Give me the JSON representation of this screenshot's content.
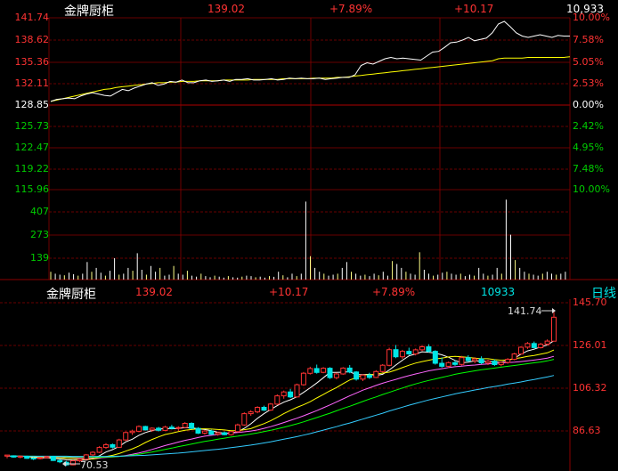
{
  "colors": {
    "up": "#ff3333",
    "down": "#00e5e5",
    "gain": "#00cc00",
    "white": "#ffffff",
    "yellow": "#ffff00",
    "grid": "#8b0000",
    "ma5": "#ffffff",
    "ma10": "#ffff00",
    "ma20": "#ff66ff",
    "ma30": "#00ff00",
    "ma60": "#33ccff"
  },
  "intraday": {
    "name": "金牌厨柜",
    "price": "139.02",
    "change_pct": "+7.89%",
    "change": "+10.17",
    "volume": "10,933",
    "price_axis_left": [
      "141.74",
      "138.62",
      "135.36",
      "132.11",
      "128.85",
      "125.73",
      "122.47",
      "119.22",
      "115.96"
    ],
    "pct_axis_right": [
      "10.00%",
      "7.58%",
      "5.05%",
      "2.53%",
      "0.00%",
      "2.42%",
      "4.95%",
      "7.48%",
      "10.00%"
    ],
    "volume_axis": [
      "407",
      "273",
      "139"
    ],
    "price_series": [
      129.2,
      129.5,
      129.6,
      129.7,
      129.6,
      130.0,
      130.3,
      130.5,
      130.3,
      130.1,
      130.0,
      130.5,
      131.0,
      130.8,
      131.2,
      131.5,
      131.8,
      132.0,
      131.6,
      131.8,
      132.2,
      132.1,
      132.4,
      132.0,
      132.0,
      132.3,
      132.4,
      132.2,
      132.3,
      132.4,
      132.2,
      132.5,
      132.5,
      132.6,
      132.4,
      132.4,
      132.5,
      132.6,
      132.4,
      132.5,
      132.7,
      132.6,
      132.7,
      132.6,
      132.6,
      132.7,
      132.5,
      132.6,
      132.7,
      132.8,
      132.8,
      133.2,
      134.6,
      135.0,
      134.8,
      135.2,
      135.6,
      135.8,
      135.6,
      135.7,
      135.6,
      135.5,
      135.4,
      136.0,
      136.6,
      136.7,
      137.3,
      138.0,
      138.1,
      138.4,
      138.8,
      138.3,
      138.5,
      138.7,
      139.5,
      140.8,
      141.2,
      140.4,
      139.5,
      139.0,
      138.8,
      139.0,
      139.2,
      139.0,
      138.8,
      139.1,
      139.0,
      139.0
    ],
    "avg_series": [
      129.2,
      129.4,
      129.6,
      129.8,
      130.0,
      130.2,
      130.4,
      130.6,
      130.8,
      131.0,
      131.1,
      131.3,
      131.4,
      131.5,
      131.6,
      131.7,
      131.8,
      131.9,
      132.0,
      132.0,
      132.1,
      132.1,
      132.2,
      132.2,
      132.2,
      132.3,
      132.3,
      132.3,
      132.3,
      132.4,
      132.4,
      132.4,
      132.4,
      132.4,
      132.5,
      132.5,
      132.5,
      132.5,
      132.5,
      132.6,
      132.6,
      132.6,
      132.6,
      132.6,
      132.7,
      132.7,
      132.7,
      132.7,
      132.8,
      132.8,
      132.9,
      133.0,
      133.1,
      133.2,
      133.3,
      133.4,
      133.5,
      133.6,
      133.7,
      133.8,
      133.9,
      134.0,
      134.1,
      134.2,
      134.3,
      134.4,
      134.5,
      134.6,
      134.7,
      134.8,
      134.9,
      135.0,
      135.1,
      135.2,
      135.3,
      135.6,
      135.7,
      135.7,
      135.7,
      135.7,
      135.8,
      135.8,
      135.8,
      135.8,
      135.8,
      135.8,
      135.8,
      135.9
    ],
    "volume_series": [
      40,
      30,
      25,
      22,
      35,
      28,
      20,
      30,
      90,
      40,
      60,
      35,
      20,
      45,
      110,
      25,
      30,
      60,
      45,
      135,
      50,
      25,
      70,
      40,
      60,
      20,
      25,
      70,
      30,
      25,
      45,
      20,
      15,
      30,
      18,
      12,
      20,
      15,
      10,
      18,
      12,
      10,
      15,
      20,
      18,
      12,
      15,
      10,
      18,
      14,
      40,
      22,
      12,
      30,
      18,
      30,
      400,
      120,
      60,
      40,
      30,
      20,
      25,
      30,
      60,
      90,
      40,
      30,
      20,
      25,
      18,
      30,
      22,
      40,
      20,
      95,
      80,
      60,
      40,
      30,
      25,
      140,
      50,
      30,
      20,
      25,
      35,
      40,
      30,
      25,
      30,
      18,
      25,
      20,
      60,
      30,
      20,
      25,
      60,
      30,
      410,
      230,
      100,
      60,
      40,
      30,
      25,
      20,
      30,
      40,
      30,
      25,
      30,
      40
    ]
  },
  "daily": {
    "name": "金牌厨柜",
    "price": "139.02",
    "change": "+10.17",
    "change_pct": "+7.89%",
    "volume": "10933",
    "period_tab": "日线",
    "price_axis_right": [
      "145.70",
      "126.01",
      "106.32",
      "86.63"
    ],
    "high_marker": "141.74",
    "low_marker": "70.53",
    "chart_data": {
      "type": "candlestick",
      "ylim": [
        70,
        146
      ],
      "candles": [
        [
          75,
          75.5,
          74,
          75.5
        ],
        [
          75.2,
          75.4,
          74.3,
          74.6
        ],
        [
          74.8,
          75.3,
          74.0,
          75.0
        ],
        [
          74.9,
          75.2,
          73.8,
          74.0
        ],
        [
          74.1,
          74.5,
          73.2,
          73.8
        ],
        [
          73.9,
          74.6,
          73.5,
          74.3
        ],
        [
          74.3,
          75.1,
          73.9,
          74.8
        ],
        [
          74.8,
          75.2,
          72.8,
          73.0
        ],
        [
          73.0,
          73.6,
          71.8,
          72.4
        ],
        [
          72.2,
          72.8,
          70.5,
          71.0
        ],
        [
          71.0,
          73.2,
          70.8,
          72.9
        ],
        [
          72.9,
          74.0,
          72.2,
          73.6
        ],
        [
          73.6,
          76.0,
          73.2,
          75.6
        ],
        [
          75.6,
          77.3,
          75.0,
          76.8
        ],
        [
          76.8,
          79.6,
          76.4,
          79.0
        ],
        [
          79.0,
          81.0,
          78.4,
          80.3
        ],
        [
          80.3,
          80.8,
          78.6,
          79.1
        ],
        [
          79.1,
          83.0,
          78.8,
          82.5
        ],
        [
          82.5,
          86.4,
          82.0,
          85.9
        ],
        [
          85.9,
          87.2,
          84.8,
          86.5
        ],
        [
          86.5,
          89.2,
          86.0,
          88.7
        ],
        [
          88.7,
          89.0,
          86.8,
          87.1
        ],
        [
          87.1,
          88.3,
          86.2,
          87.9
        ],
        [
          87.9,
          88.5,
          86.4,
          86.9
        ],
        [
          86.9,
          89.0,
          86.5,
          88.4
        ],
        [
          88.4,
          89.4,
          87.4,
          87.8
        ],
        [
          87.8,
          88.8,
          86.6,
          88.2
        ],
        [
          88.2,
          90.7,
          87.8,
          90.1
        ],
        [
          90.1,
          90.6,
          87.4,
          87.8
        ],
        [
          87.8,
          88.4,
          85.2,
          85.6
        ],
        [
          85.6,
          87.0,
          84.9,
          86.6
        ],
        [
          86.6,
          87.2,
          84.8,
          85.1
        ],
        [
          85.1,
          86.2,
          84.4,
          85.8
        ],
        [
          85.8,
          86.4,
          84.6,
          84.9
        ],
        [
          84.9,
          86.6,
          84.5,
          86.3
        ],
        [
          86.3,
          90.0,
          86.0,
          89.4
        ],
        [
          89.4,
          95.2,
          89.0,
          94.6
        ],
        [
          94.6,
          96.2,
          93.6,
          95.4
        ],
        [
          95.4,
          98.0,
          94.8,
          97.5
        ],
        [
          97.5,
          98.3,
          95.8,
          96.2
        ],
        [
          96.2,
          99.5,
          95.8,
          99.0
        ],
        [
          99.0,
          103.5,
          98.6,
          102.8
        ],
        [
          102.8,
          105.2,
          101.5,
          104.6
        ],
        [
          104.6,
          106.0,
          101.8,
          102.3
        ],
        [
          102.3,
          108.4,
          102.0,
          107.9
        ],
        [
          107.9,
          113.8,
          107.4,
          113.2
        ],
        [
          113.2,
          116.2,
          112.6,
          115.4
        ],
        [
          115.4,
          117.2,
          113.0,
          113.6
        ],
        [
          113.6,
          116.0,
          113.2,
          115.5
        ],
        [
          115.5,
          116.0,
          110.6,
          111.2
        ],
        [
          111.2,
          113.5,
          110.4,
          112.9
        ],
        [
          112.9,
          116.0,
          112.5,
          115.6
        ],
        [
          115.6,
          117.0,
          113.2,
          113.8
        ],
        [
          113.8,
          114.2,
          109.8,
          110.5
        ],
        [
          110.5,
          112.8,
          109.6,
          112.4
        ],
        [
          112.4,
          113.4,
          110.6,
          111.3
        ],
        [
          111.3,
          114.6,
          111.0,
          114.0
        ],
        [
          114.0,
          117.4,
          113.6,
          116.9
        ],
        [
          116.9,
          125.0,
          116.4,
          124.1
        ],
        [
          124.1,
          126.2,
          120.2,
          120.8
        ],
        [
          120.8,
          124.0,
          119.8,
          123.3
        ],
        [
          123.3,
          125.0,
          121.6,
          122.1
        ],
        [
          122.1,
          124.6,
          121.4,
          124.0
        ],
        [
          124.0,
          126.2,
          123.4,
          125.4
        ],
        [
          125.4,
          126.6,
          122.8,
          123.3
        ],
        [
          123.3,
          123.8,
          117.2,
          117.8
        ],
        [
          117.8,
          120.5,
          115.8,
          116.4
        ],
        [
          116.4,
          118.6,
          115.6,
          118.1
        ],
        [
          118.1,
          119.2,
          116.6,
          117.3
        ],
        [
          117.3,
          121.2,
          116.8,
          120.4
        ],
        [
          120.4,
          121.5,
          118.4,
          119.0
        ],
        [
          119.0,
          120.6,
          117.8,
          119.8
        ],
        [
          119.8,
          121.0,
          117.4,
          118.0
        ],
        [
          118.0,
          119.4,
          117.0,
          118.8
        ],
        [
          118.8,
          119.6,
          116.6,
          117.2
        ],
        [
          117.2,
          118.6,
          116.4,
          118.2
        ],
        [
          118.2,
          120.2,
          117.6,
          119.6
        ],
        [
          119.6,
          122.6,
          119.2,
          122.1
        ],
        [
          122.1,
          125.6,
          121.8,
          125.2
        ],
        [
          125.2,
          127.6,
          124.4,
          126.9
        ],
        [
          126.9,
          127.8,
          124.6,
          125.0
        ],
        [
          125.0,
          127.2,
          124.6,
          126.6
        ],
        [
          126.6,
          128.8,
          126.0,
          128.0
        ],
        [
          128.0,
          141.74,
          128.0,
          139.02
        ]
      ],
      "ma_lines": {
        "ma5": [
          75,
          75,
          75,
          74.8,
          74.4,
          74.2,
          74.3,
          74.0,
          73.7,
          73.3,
          73.2,
          73.1,
          73.2,
          73.9,
          75.2,
          76.9,
          78.0,
          79.5,
          81.6,
          82.8,
          84.6,
          85.9,
          86.8,
          87.4,
          87.8,
          87.6,
          87.8,
          88.1,
          88.1,
          87.6,
          87.3,
          86.7,
          86.0,
          85.6,
          85.7,
          86.2,
          87.8,
          89.9,
          92.4,
          94.6,
          96.5,
          98.3,
          99.9,
          101.0,
          102.4,
          104.4,
          106.5,
          108.7,
          111.1,
          113.6,
          113.6,
          113.7,
          113.9,
          112.6,
          112.6,
          112.7,
          112.2,
          112.7,
          114.7,
          117.0,
          119.2,
          121.2,
          122.1,
          123.1,
          122.9,
          122.5,
          121.7,
          120.6,
          119.1,
          118.0,
          118.3,
          118.9,
          118.7,
          118.8,
          118.4,
          118.3,
          119.1,
          120.1,
          122.0,
          123.5,
          124.3,
          125.3,
          126.2,
          128.2
        ],
        "ma10": [
          75,
          75,
          75,
          74.9,
          74.7,
          74.6,
          74.6,
          74.5,
          74.3,
          74.0,
          73.9,
          73.7,
          73.6,
          73.7,
          74.1,
          74.8,
          75.4,
          76.2,
          77.3,
          78.4,
          79.7,
          81.3,
          82.7,
          83.9,
          85.0,
          85.6,
          86.3,
          86.9,
          87.3,
          87.6,
          87.6,
          87.5,
          87.3,
          87.1,
          86.7,
          86.8,
          87.2,
          87.7,
          88.9,
          90.0,
          91.3,
          92.9,
          94.6,
          96.1,
          97.5,
          98.7,
          100.1,
          101.8,
          103.4,
          105.1,
          106.6,
          108.4,
          110.1,
          111.2,
          112.4,
          112.6,
          112.8,
          113.3,
          113.7,
          114.7,
          115.8,
          116.9,
          117.9,
          118.6,
          119.2,
          119.8,
          120.2,
          120.7,
          121.0,
          120.8,
          120.5,
          120.2,
          119.9,
          119.9,
          119.5,
          119.2,
          119.4,
          119.9,
          120.4,
          121.0,
          121.4,
          122.0,
          122.6,
          123.9
        ],
        "ma20": [
          75,
          75,
          75,
          75,
          74.9,
          74.8,
          74.8,
          74.7,
          74.6,
          74.5,
          74.4,
          74.3,
          74.2,
          74.2,
          74.2,
          74.4,
          74.6,
          74.9,
          75.3,
          75.9,
          76.5,
          77.2,
          78.1,
          79.0,
          79.9,
          80.7,
          81.5,
          82.3,
          82.9,
          83.6,
          84.2,
          84.6,
          85.0,
          85.3,
          85.6,
          85.9,
          86.2,
          86.6,
          87.1,
          87.8,
          88.6,
          89.5,
          90.5,
          91.5,
          92.5,
          93.6,
          94.8,
          96.0,
          97.3,
          98.6,
          100.0,
          101.4,
          102.8,
          104.1,
          105.4,
          106.5,
          107.6,
          108.6,
          109.5,
          110.4,
          111.3,
          112.1,
          112.9,
          113.6,
          114.3,
          114.8,
          115.3,
          115.8,
          116.2,
          116.5,
          116.8,
          117.0,
          117.3,
          117.5,
          117.7,
          117.9,
          118.1,
          118.3,
          118.6,
          118.9,
          119.3,
          119.7,
          120.2,
          121.0
        ],
        "ma30": [
          75,
          75,
          75,
          75,
          75,
          74.9,
          74.9,
          74.8,
          74.8,
          74.7,
          74.7,
          74.6,
          74.6,
          74.5,
          74.5,
          74.6,
          74.7,
          74.9,
          75.1,
          75.5,
          75.9,
          76.4,
          76.9,
          77.5,
          78.1,
          78.7,
          79.4,
          80.0,
          80.6,
          81.2,
          81.8,
          82.3,
          82.8,
          83.3,
          83.8,
          84.2,
          84.7,
          85.2,
          85.7,
          86.3,
          86.9,
          87.6,
          88.3,
          89.1,
          89.9,
          90.8,
          91.8,
          92.8,
          93.8,
          94.8,
          95.9,
          97.0,
          98.0,
          99.1,
          100.2,
          101.3,
          102.3,
          103.4,
          104.4,
          105.4,
          106.4,
          107.4,
          108.3,
          109.1,
          109.9,
          110.6,
          111.3,
          112.0,
          112.7,
          113.3,
          113.8,
          114.3,
          114.8,
          115.2,
          115.6,
          116.0,
          116.4,
          116.8,
          117.2,
          117.6,
          118.0,
          118.4,
          118.9,
          119.6
        ],
        "ma60": [
          75,
          75,
          75,
          75,
          75,
          75,
          75,
          75,
          75,
          75,
          74.9,
          74.9,
          74.9,
          74.9,
          74.9,
          74.9,
          75.0,
          75.0,
          75.1,
          75.2,
          75.3,
          75.4,
          75.6,
          75.8,
          76.0,
          76.2,
          76.4,
          76.7,
          77.0,
          77.3,
          77.6,
          77.9,
          78.2,
          78.5,
          78.9,
          79.3,
          79.7,
          80.1,
          80.6,
          81.1,
          81.6,
          82.2,
          82.8,
          83.4,
          84.0,
          84.7,
          85.4,
          86.2,
          87.0,
          87.8,
          88.6,
          89.5,
          90.3,
          91.2,
          92.1,
          93.0,
          93.9,
          94.8,
          95.8,
          96.7,
          97.6,
          98.5,
          99.3,
          100.1,
          100.9,
          101.6,
          102.3,
          103.0,
          103.7,
          104.3,
          104.9,
          105.5,
          106.0,
          106.6,
          107.1,
          107.6,
          108.2,
          108.7,
          109.2,
          109.8,
          110.3,
          110.9,
          111.5,
          112.2
        ]
      }
    }
  }
}
